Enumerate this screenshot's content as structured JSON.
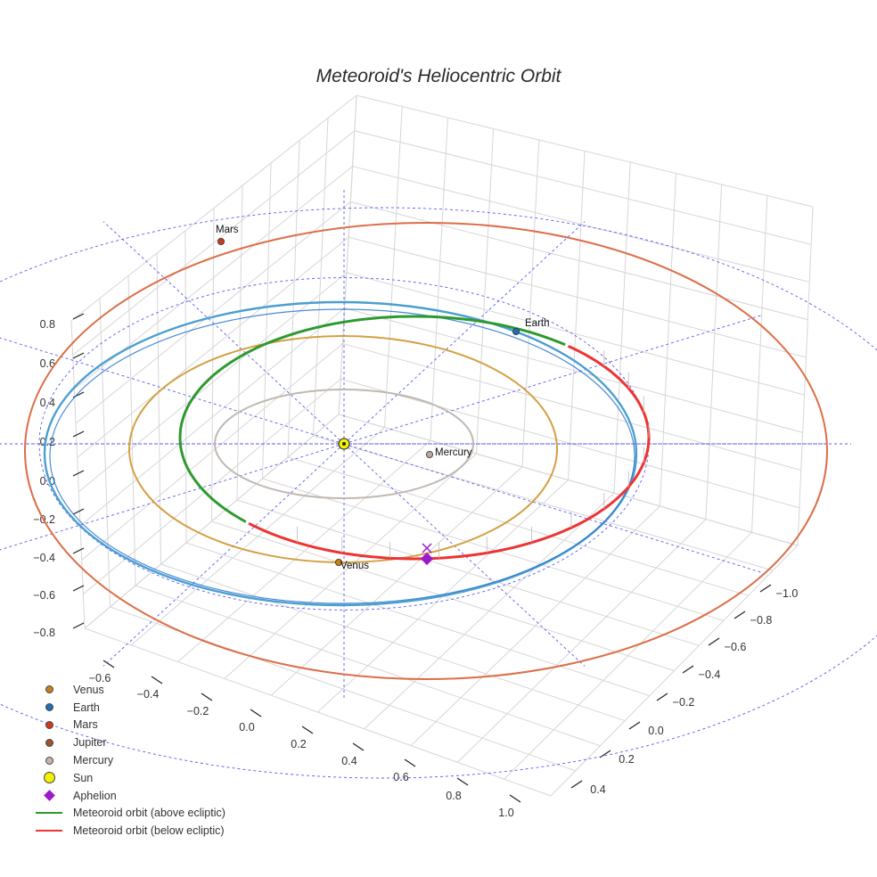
{
  "chart_data": {
    "type": "3d-orbit",
    "title": "Meteoroid's Heliocentric Orbit",
    "axes": {
      "left_ticks": [
        "0.8",
        "0.6",
        "0.4",
        "0.2",
        "0.0",
        "−0.2",
        "−0.4",
        "−0.6",
        "−0.8"
      ],
      "front_ticks": [
        "−0.6",
        "−0.4",
        "−0.2",
        "0.0",
        "0.2",
        "0.4",
        "0.6",
        "0.8",
        "1.0"
      ],
      "right_ticks": [
        "−1.0",
        "−0.8",
        "−0.6",
        "−0.4",
        "−0.2",
        "0.0",
        "0.2",
        "0.4"
      ]
    },
    "orbits": [
      {
        "name": "Mercury orbit",
        "semi_major_au": 0.39,
        "color": "#c0b8b0"
      },
      {
        "name": "Venus orbit",
        "semi_major_au": 0.72,
        "color": "#d4a043"
      },
      {
        "name": "Earth orbit",
        "semi_major_au": 1.0,
        "color": "#4a9fd0"
      },
      {
        "name": "Mars orbit",
        "semi_major_au": 1.52,
        "color": "#dd6e48"
      }
    ],
    "planets": [
      {
        "name": "Venus",
        "label": "Venus",
        "color": "#c87f1a"
      },
      {
        "name": "Earth",
        "label": "Earth",
        "color": "#1f6fb5"
      },
      {
        "name": "Mars",
        "label": "Mars",
        "color": "#cc3a1a"
      },
      {
        "name": "Mercury",
        "label": "Mercury",
        "color": "#b8a8a0"
      }
    ],
    "sun": {
      "label": "Sun",
      "color": "#f3f000"
    },
    "meteoroid": {
      "above_color": "#2e9a2e",
      "below_color": "#ee3333",
      "aphelion_color": "#9a1acc"
    },
    "legend": [
      {
        "label": "Venus",
        "kind": "dot",
        "color": "#c87f1a"
      },
      {
        "label": "Earth",
        "kind": "dot",
        "color": "#1f6fb5"
      },
      {
        "label": "Mars",
        "kind": "dot",
        "color": "#cc3a1a"
      },
      {
        "label": "Jupiter",
        "kind": "dot",
        "color": "#a0522d"
      },
      {
        "label": "Mercury",
        "kind": "dot",
        "color": "#c8b4ac"
      },
      {
        "label": "Sun",
        "kind": "big-dot",
        "color": "#f3f000"
      },
      {
        "label": "Aphelion",
        "kind": "diamond",
        "color": "#9a1acc"
      },
      {
        "label": "Meteoroid orbit (above ecliptic)",
        "kind": "line",
        "color": "#2e9a2e"
      },
      {
        "label": "Meteoroid orbit (below ecliptic)",
        "kind": "line",
        "color": "#ee3333"
      }
    ]
  }
}
